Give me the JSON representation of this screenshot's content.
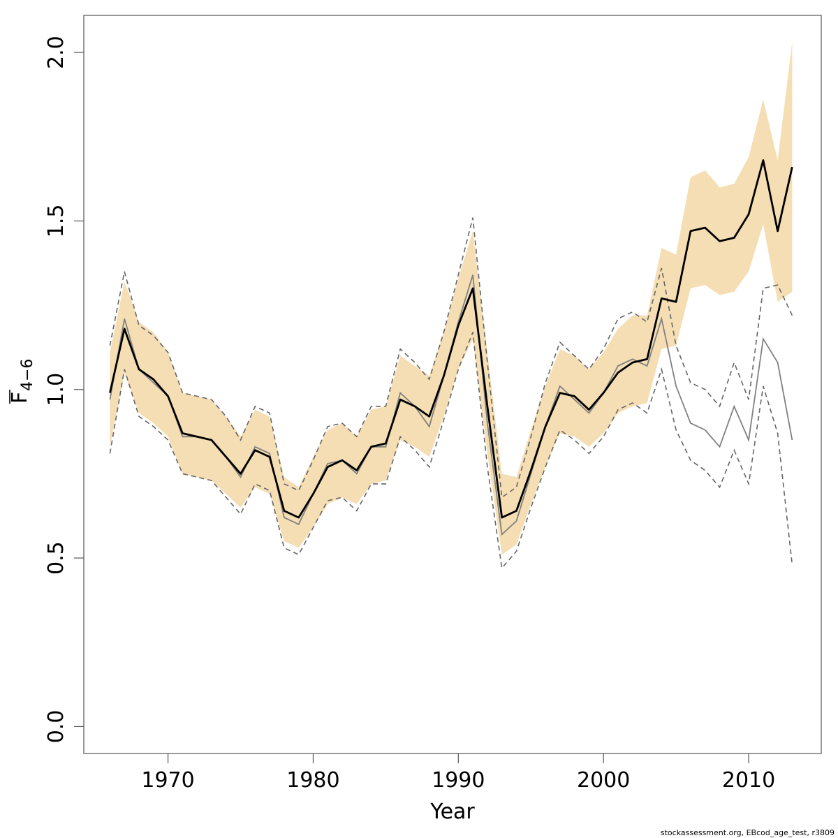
{
  "chart_data": {
    "type": "line",
    "xlabel": "Year",
    "ylabel_main": "F",
    "ylabel_sub": "4−6",
    "xlim": [
      1964.2,
      2015.0
    ],
    "ylim": [
      -0.08,
      2.11
    ],
    "x_ticks": [
      1970,
      1980,
      1990,
      2000,
      2010
    ],
    "x_tick_labels": [
      "1970",
      "1980",
      "1990",
      "2000",
      "2010"
    ],
    "y_ticks": [
      0.0,
      0.5,
      1.0,
      1.5,
      2.0
    ],
    "y_tick_labels": [
      "0.0",
      "0.5",
      "1.0",
      "1.5",
      "2.0"
    ],
    "grid": false,
    "band_color": "#f5deb3",
    "footer": "stockassessment.org, EBcod_age_test, r3809",
    "x": [
      1966,
      1967,
      1968,
      1969,
      1970,
      1971,
      1972,
      1973,
      1974,
      1975,
      1976,
      1977,
      1978,
      1979,
      1980,
      1981,
      1982,
      1983,
      1984,
      1985,
      1986,
      1987,
      1988,
      1989,
      1990,
      1991,
      1992,
      1993,
      1994,
      1995,
      1996,
      1997,
      1998,
      1999,
      2000,
      2001,
      2002,
      2003,
      2004,
      2005,
      2006,
      2007,
      2008,
      2009,
      2010,
      2011,
      2012,
      2013
    ],
    "series": [
      {
        "role": "estimate",
        "values": [
          0.99,
          1.18,
          1.06,
          1.03,
          0.98,
          0.87,
          0.86,
          0.85,
          0.8,
          0.75,
          0.82,
          0.8,
          0.64,
          0.62,
          0.69,
          0.77,
          0.79,
          0.76,
          0.83,
          0.84,
          0.97,
          0.95,
          0.92,
          1.04,
          1.19,
          1.3,
          0.95,
          0.62,
          0.64,
          0.76,
          0.89,
          0.99,
          0.98,
          0.94,
          0.99,
          1.05,
          1.08,
          1.09,
          1.27,
          1.26,
          1.47,
          1.48,
          1.44,
          1.45,
          1.52,
          1.68,
          1.47,
          1.66
        ]
      },
      {
        "role": "band_upper",
        "values": [
          1.11,
          1.32,
          1.2,
          1.17,
          1.11,
          0.99,
          0.98,
          0.97,
          0.92,
          0.86,
          0.94,
          0.92,
          0.74,
          0.71,
          0.8,
          0.88,
          0.9,
          0.86,
          0.94,
          0.95,
          1.1,
          1.07,
          1.04,
          1.17,
          1.33,
          1.47,
          1.11,
          0.75,
          0.74,
          0.88,
          1.01,
          1.12,
          1.1,
          1.06,
          1.11,
          1.18,
          1.22,
          1.22,
          1.42,
          1.4,
          1.63,
          1.65,
          1.6,
          1.61,
          1.69,
          1.86,
          1.68,
          2.03
        ]
      },
      {
        "role": "band_lower",
        "values": [
          0.83,
          1.05,
          0.93,
          0.9,
          0.86,
          0.75,
          0.74,
          0.73,
          0.69,
          0.65,
          0.71,
          0.69,
          0.55,
          0.53,
          0.59,
          0.66,
          0.68,
          0.66,
          0.72,
          0.73,
          0.85,
          0.83,
          0.8,
          0.92,
          1.06,
          1.15,
          0.81,
          0.51,
          0.54,
          0.66,
          0.77,
          0.87,
          0.86,
          0.83,
          0.87,
          0.93,
          0.95,
          0.96,
          1.12,
          1.13,
          1.3,
          1.31,
          1.28,
          1.29,
          1.35,
          1.49,
          1.26,
          1.29
        ]
      },
      {
        "role": "alternative_run",
        "color": "#808080",
        "values": [
          0.97,
          1.21,
          1.06,
          1.02,
          0.98,
          0.86,
          0.86,
          0.85,
          0.8,
          0.74,
          0.83,
          0.81,
          0.62,
          0.6,
          0.69,
          0.78,
          0.79,
          0.75,
          0.83,
          0.83,
          0.99,
          0.95,
          0.89,
          1.04,
          1.2,
          1.34,
          0.9,
          0.57,
          0.61,
          0.75,
          0.89,
          1.01,
          0.97,
          0.93,
          0.99,
          1.07,
          1.09,
          1.07,
          1.21,
          1.01,
          0.9,
          0.88,
          0.83,
          0.95,
          0.85,
          1.15,
          1.08,
          0.85
        ]
      },
      {
        "role": "alternative_upper",
        "color": "#666666",
        "values": [
          1.13,
          1.35,
          1.19,
          1.16,
          1.11,
          0.99,
          0.98,
          0.97,
          0.92,
          0.85,
          0.95,
          0.93,
          0.72,
          0.7,
          0.79,
          0.89,
          0.9,
          0.86,
          0.95,
          0.95,
          1.12,
          1.08,
          1.03,
          1.17,
          1.34,
          1.51,
          1.08,
          0.68,
          0.71,
          0.86,
          1.02,
          1.14,
          1.1,
          1.06,
          1.12,
          1.21,
          1.23,
          1.2,
          1.36,
          1.13,
          1.02,
          1.0,
          0.95,
          1.08,
          0.97,
          1.3,
          1.31,
          1.22
        ]
      },
      {
        "role": "alternative_lower",
        "color": "#666666",
        "values": [
          0.81,
          1.06,
          0.92,
          0.89,
          0.85,
          0.75,
          0.74,
          0.73,
          0.68,
          0.63,
          0.72,
          0.7,
          0.53,
          0.51,
          0.59,
          0.67,
          0.68,
          0.64,
          0.72,
          0.72,
          0.86,
          0.82,
          0.77,
          0.91,
          1.06,
          1.17,
          0.77,
          0.47,
          0.52,
          0.65,
          0.77,
          0.88,
          0.85,
          0.81,
          0.86,
          0.94,
          0.96,
          0.93,
          1.06,
          0.88,
          0.79,
          0.76,
          0.71,
          0.82,
          0.72,
          1.01,
          0.87,
          0.48
        ]
      }
    ]
  }
}
